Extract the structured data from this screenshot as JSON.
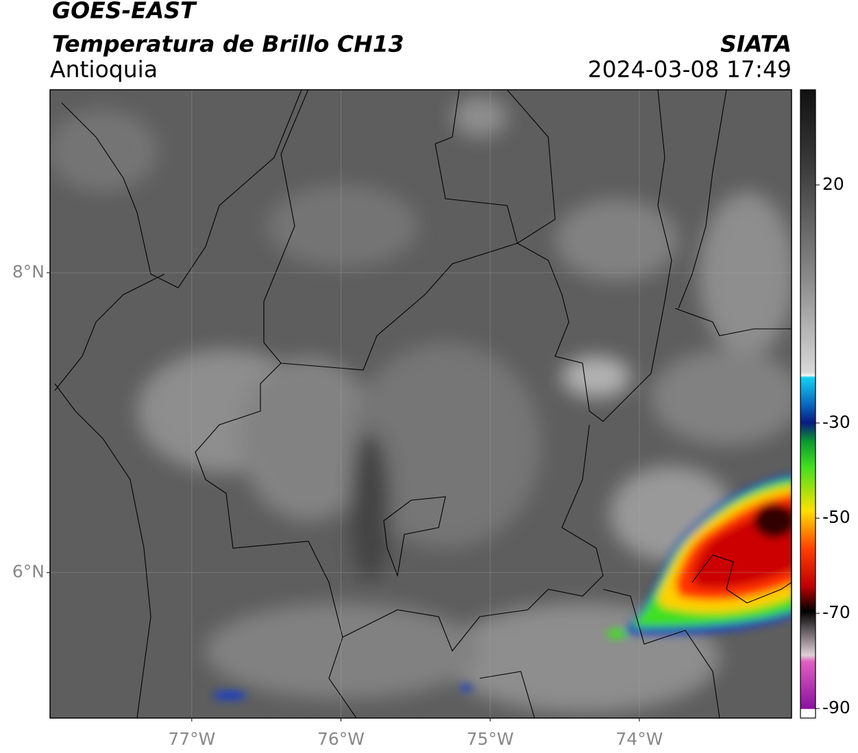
{
  "header": {
    "title": "GOES-EAST",
    "subtitle": "Temperatura de Brillo CH13",
    "region": "Antioquia",
    "source": "SIATA",
    "datetime": "2024-03-08 17:49"
  },
  "map": {
    "xlim": [
      -77.95,
      -72.98
    ],
    "ylim": [
      5.03,
      9.22
    ],
    "xticks": [
      {
        "value": -77,
        "label": "77°W"
      },
      {
        "value": -76,
        "label": "76°W"
      },
      {
        "value": -75,
        "label": "75°W"
      },
      {
        "value": -74,
        "label": "74°W"
      }
    ],
    "yticks": [
      {
        "value": 6,
        "label": "6°N"
      },
      {
        "value": 8,
        "label": "8°N"
      }
    ],
    "grid": true
  },
  "colorbar": {
    "lim": [
      -92,
      40
    ],
    "ticks": [
      20,
      -30,
      -50,
      -70,
      -90
    ]
  }
}
